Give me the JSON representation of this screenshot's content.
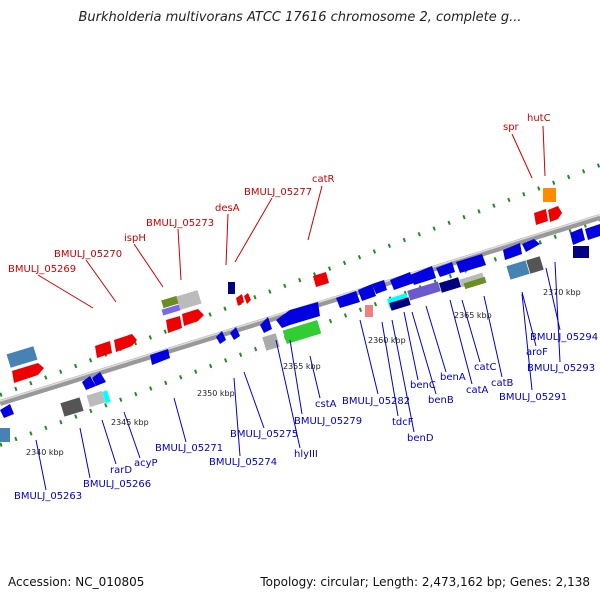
{
  "title": "Burkholderia multivorans ATCC 17616 chromosome 2, complete g...",
  "footer": {
    "accession": "Accession: NC_010805",
    "summary": "Topology: circular; Length: 2,473,162 bp; Genes: 2,138"
  },
  "colors": {
    "forward_label": "#cc0000",
    "reverse_label": "#0000cc",
    "backbone": "#888888",
    "dots": "#228b22"
  },
  "top_labels": [
    "spr",
    "hutC",
    "catR",
    "BMULJ_05277",
    "desA",
    "BMULJ_05273",
    "ispH",
    "BMULJ_05270",
    "BMULJ_05269"
  ],
  "bottom_labels": [
    "BMULJ_05294",
    "aroF",
    "BMULJ_05293",
    "catB",
    "BMULJ_05291",
    "catC",
    "catA",
    "benA",
    "benC",
    "benB",
    "BMULJ_05282",
    "tdcF",
    "benD",
    "cstA",
    "BMULJ_05279",
    "hlyIII",
    "BMULJ_05275",
    "BMULJ_05274",
    "BMULJ_05271",
    "acyP",
    "rarD",
    "BMULJ_05266",
    "BMULJ_05263"
  ],
  "ticks": [
    "2340 kbp",
    "2345 kbp",
    "2350 kbp",
    "2355 kbp",
    "2360 kbp",
    "2365 kbp",
    "2370 kbp"
  ]
}
